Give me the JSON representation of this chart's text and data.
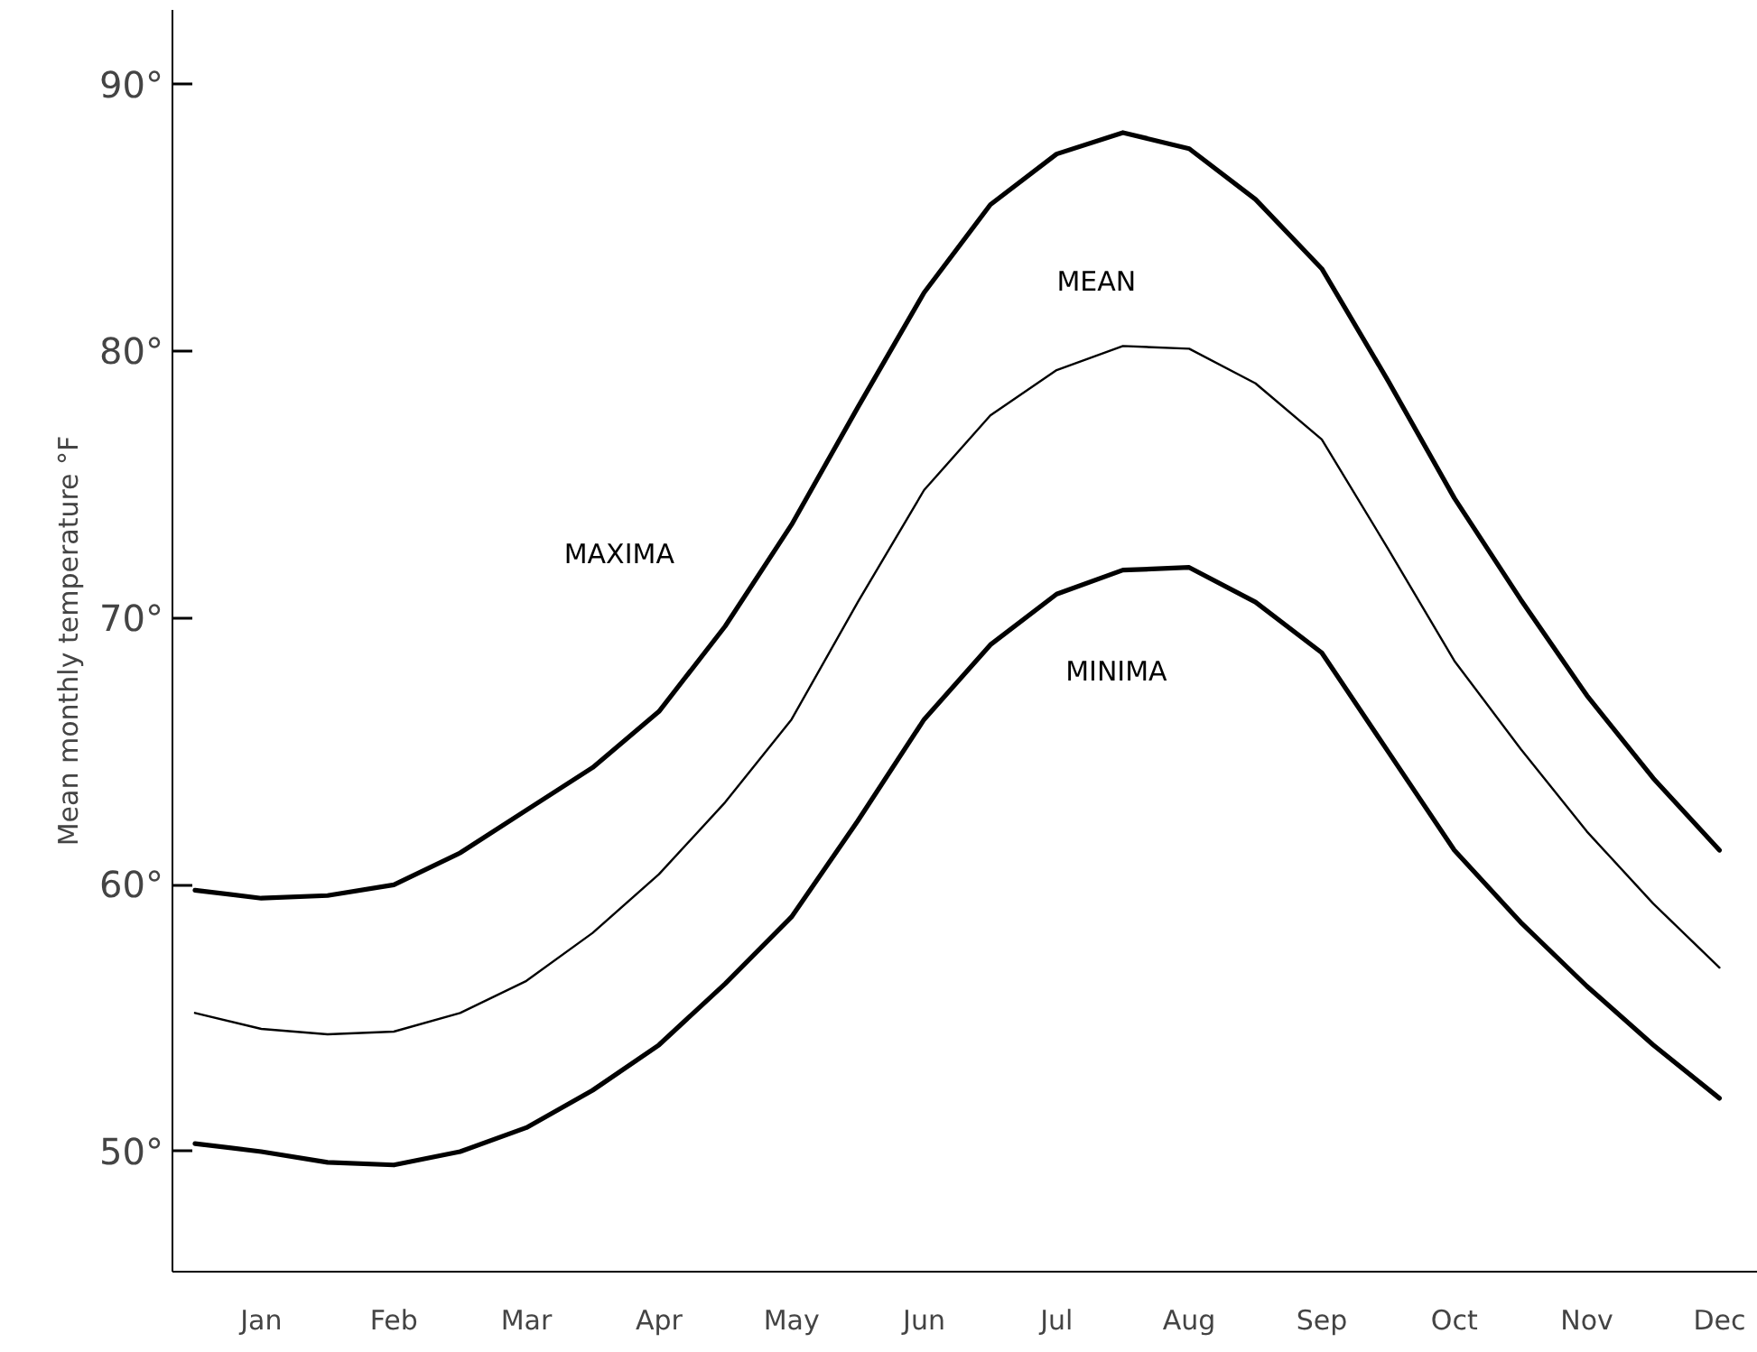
{
  "chart_data": {
    "type": "line",
    "ylabel": "Mean monthly temperature °F",
    "categories": [
      null,
      "Jan",
      null,
      "Feb",
      null,
      "Mar",
      null,
      "Apr",
      null,
      "May",
      null,
      "Jun",
      null,
      "Jul",
      null,
      "Aug",
      null,
      "Sep",
      null,
      "Oct",
      null,
      "Nov",
      null,
      "Dec"
    ],
    "ylim": [
      45.5,
      92.8
    ],
    "yticks": [
      {
        "value": 50,
        "label": "50°"
      },
      {
        "value": 60,
        "label": "60°"
      },
      {
        "value": 70,
        "label": "70°"
      },
      {
        "value": 80,
        "label": "80°"
      },
      {
        "value": 90,
        "label": "90°"
      }
    ],
    "grid": false,
    "marker": "none",
    "line_style": "solid",
    "series": [
      {
        "name": "MAXIMA",
        "color": "#000000",
        "values": [
          59.8,
          59.5,
          59.6,
          60.0,
          61.2,
          62.8,
          64.4,
          66.5,
          69.7,
          73.5,
          77.9,
          82.2,
          85.5,
          87.4,
          88.2,
          87.6,
          85.7,
          83.1,
          78.9,
          74.5,
          70.7,
          67.1,
          64.0,
          61.3
        ]
      },
      {
        "name": "MEAN",
        "color": "#000000",
        "values": [
          55.2,
          54.6,
          54.4,
          54.5,
          55.2,
          56.4,
          58.2,
          60.4,
          63.1,
          66.2,
          70.6,
          74.8,
          77.6,
          79.3,
          80.2,
          80.1,
          78.8,
          76.7,
          72.6,
          68.4,
          65.1,
          62.0,
          59.3,
          56.9
        ]
      },
      {
        "name": "MINIMA",
        "color": "#000000",
        "values": [
          50.3,
          50.0,
          49.6,
          49.5,
          50.0,
          50.9,
          52.3,
          54.0,
          56.3,
          58.8,
          62.4,
          66.2,
          69.0,
          70.9,
          71.8,
          71.9,
          70.6,
          68.7,
          65.0,
          61.3,
          58.6,
          56.2,
          54.0,
          52.0
        ]
      }
    ]
  }
}
